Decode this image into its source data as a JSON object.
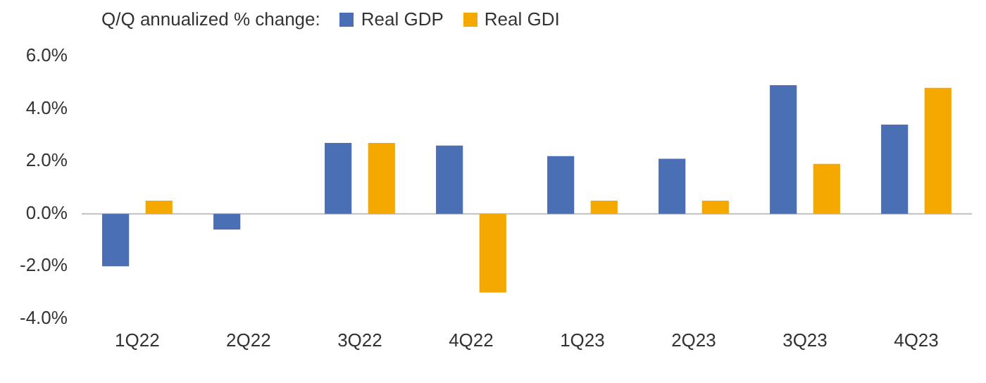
{
  "chart_data": {
    "type": "bar",
    "legend_title": "Q/Q annualized % change:",
    "categories": [
      "1Q22",
      "2Q22",
      "3Q22",
      "4Q22",
      "1Q23",
      "2Q23",
      "3Q23",
      "4Q23"
    ],
    "series": [
      {
        "name": "Real GDP",
        "color": "#4a6fb5",
        "values": [
          -2.0,
          -0.6,
          2.7,
          2.6,
          2.2,
          2.1,
          4.9,
          3.4
        ]
      },
      {
        "name": "Real GDI",
        "color": "#f5a800",
        "values": [
          0.5,
          0.0,
          2.7,
          -3.0,
          0.5,
          0.5,
          1.9,
          4.8
        ]
      }
    ],
    "ylim": [
      -4,
      6
    ],
    "yticks": [
      {
        "value": -4,
        "label": "-4.0%"
      },
      {
        "value": -2,
        "label": "-2.0%"
      },
      {
        "value": 0,
        "label": "0.0%"
      },
      {
        "value": 2,
        "label": "2.0%"
      },
      {
        "value": 4,
        "label": "4.0%"
      },
      {
        "value": 6,
        "label": "6.0%"
      }
    ],
    "ref_lines": [
      {
        "axis": "y",
        "value": 0,
        "color": "#bfbfbf"
      }
    ],
    "grid": false,
    "legend": "top"
  }
}
